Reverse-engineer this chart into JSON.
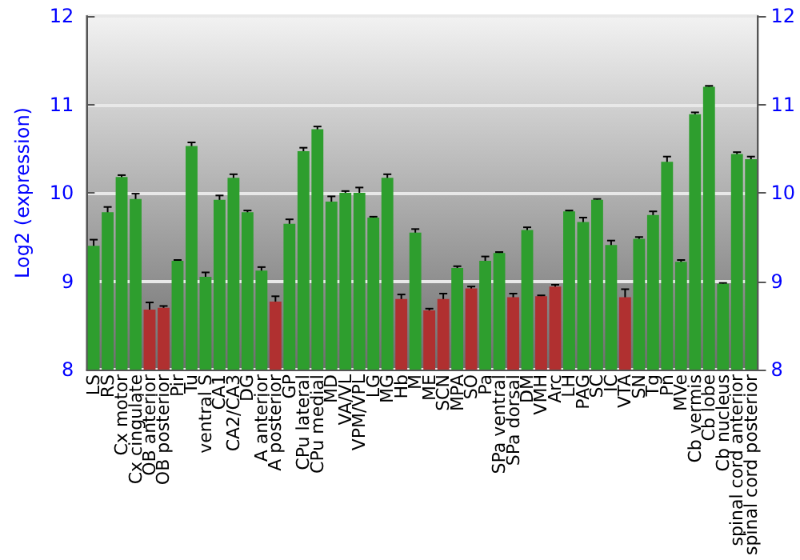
{
  "chart_data": {
    "type": "bar",
    "ylabel": "Log2 (expression)",
    "categories": [
      "LS",
      "RS",
      "Cx motor",
      "Cx cingulate",
      "OB anterior",
      "OB posterior",
      "Pir",
      "Tu",
      "ventral S",
      "CA1",
      "CA2/CA3",
      "DG",
      "A anterior",
      "A posterior",
      "GP",
      "CPu lateral",
      "CPu medial",
      "MD",
      "VA/VL",
      "VPM/VPL",
      "LG",
      "MG",
      "Hb",
      "M",
      "ME",
      "SCN",
      "MPA",
      "SO",
      "Pa",
      "SPa ventral",
      "SPa dorsal",
      "DM",
      "VMH",
      "Arc",
      "LH",
      "PAG",
      "SC",
      "IC",
      "VTA",
      "SN",
      "Tg",
      "Pn",
      "MVe",
      "Cb vermis",
      "Cb lobe",
      "Cb nucleus",
      "spinal cord anterior",
      "spinal cord posterior"
    ],
    "values": [
      9.4,
      9.78,
      10.18,
      9.93,
      8.68,
      8.7,
      9.23,
      10.53,
      9.05,
      9.92,
      10.17,
      9.78,
      9.12,
      8.77,
      9.65,
      10.47,
      10.72,
      9.9,
      10.0,
      10.0,
      9.72,
      10.17,
      8.8,
      9.55,
      8.67,
      8.8,
      9.15,
      8.92,
      9.23,
      9.32,
      8.82,
      9.58,
      8.83,
      8.94,
      9.79,
      9.67,
      9.92,
      9.41,
      8.82,
      9.48,
      9.75,
      10.35,
      9.22,
      10.89,
      11.2,
      8.97,
      10.44,
      10.38
    ],
    "errors": [
      0.07,
      0.06,
      0.02,
      0.06,
      0.08,
      0.02,
      0.01,
      0.04,
      0.05,
      0.05,
      0.04,
      0.02,
      0.04,
      0.06,
      0.05,
      0.04,
      0.03,
      0.06,
      0.02,
      0.06,
      0.01,
      0.04,
      0.05,
      0.04,
      0.02,
      0.06,
      0.02,
      0.02,
      0.05,
      0.01,
      0.04,
      0.03,
      0.01,
      0.02,
      0.01,
      0.05,
      0.01,
      0.05,
      0.09,
      0.02,
      0.04,
      0.06,
      0.02,
      0.02,
      0.01,
      0.01,
      0.02,
      0.03
    ],
    "colors": [
      "#2e9e2e",
      "#2e9e2e",
      "#2e9e2e",
      "#2e9e2e",
      "#b03030",
      "#b03030",
      "#2e9e2e",
      "#2e9e2e",
      "#2e9e2e",
      "#2e9e2e",
      "#2e9e2e",
      "#2e9e2e",
      "#2e9e2e",
      "#b03030",
      "#2e9e2e",
      "#2e9e2e",
      "#2e9e2e",
      "#2e9e2e",
      "#2e9e2e",
      "#2e9e2e",
      "#2e9e2e",
      "#2e9e2e",
      "#b03030",
      "#2e9e2e",
      "#b03030",
      "#b03030",
      "#2e9e2e",
      "#b03030",
      "#2e9e2e",
      "#2e9e2e",
      "#b03030",
      "#2e9e2e",
      "#b03030",
      "#b03030",
      "#2e9e2e",
      "#2e9e2e",
      "#2e9e2e",
      "#2e9e2e",
      "#b03030",
      "#2e9e2e",
      "#2e9e2e",
      "#2e9e2e",
      "#2e9e2e",
      "#2e9e2e",
      "#2e9e2e",
      "#2e9e2e",
      "#2e9e2e",
      "#2e9e2e"
    ],
    "ylim": [
      8,
      12
    ],
    "yticks": [
      8,
      9,
      10,
      11,
      12
    ],
    "y2lim": [
      8,
      12
    ],
    "y2ticks": [
      8,
      9,
      10,
      11,
      12
    ],
    "grid": "y"
  }
}
